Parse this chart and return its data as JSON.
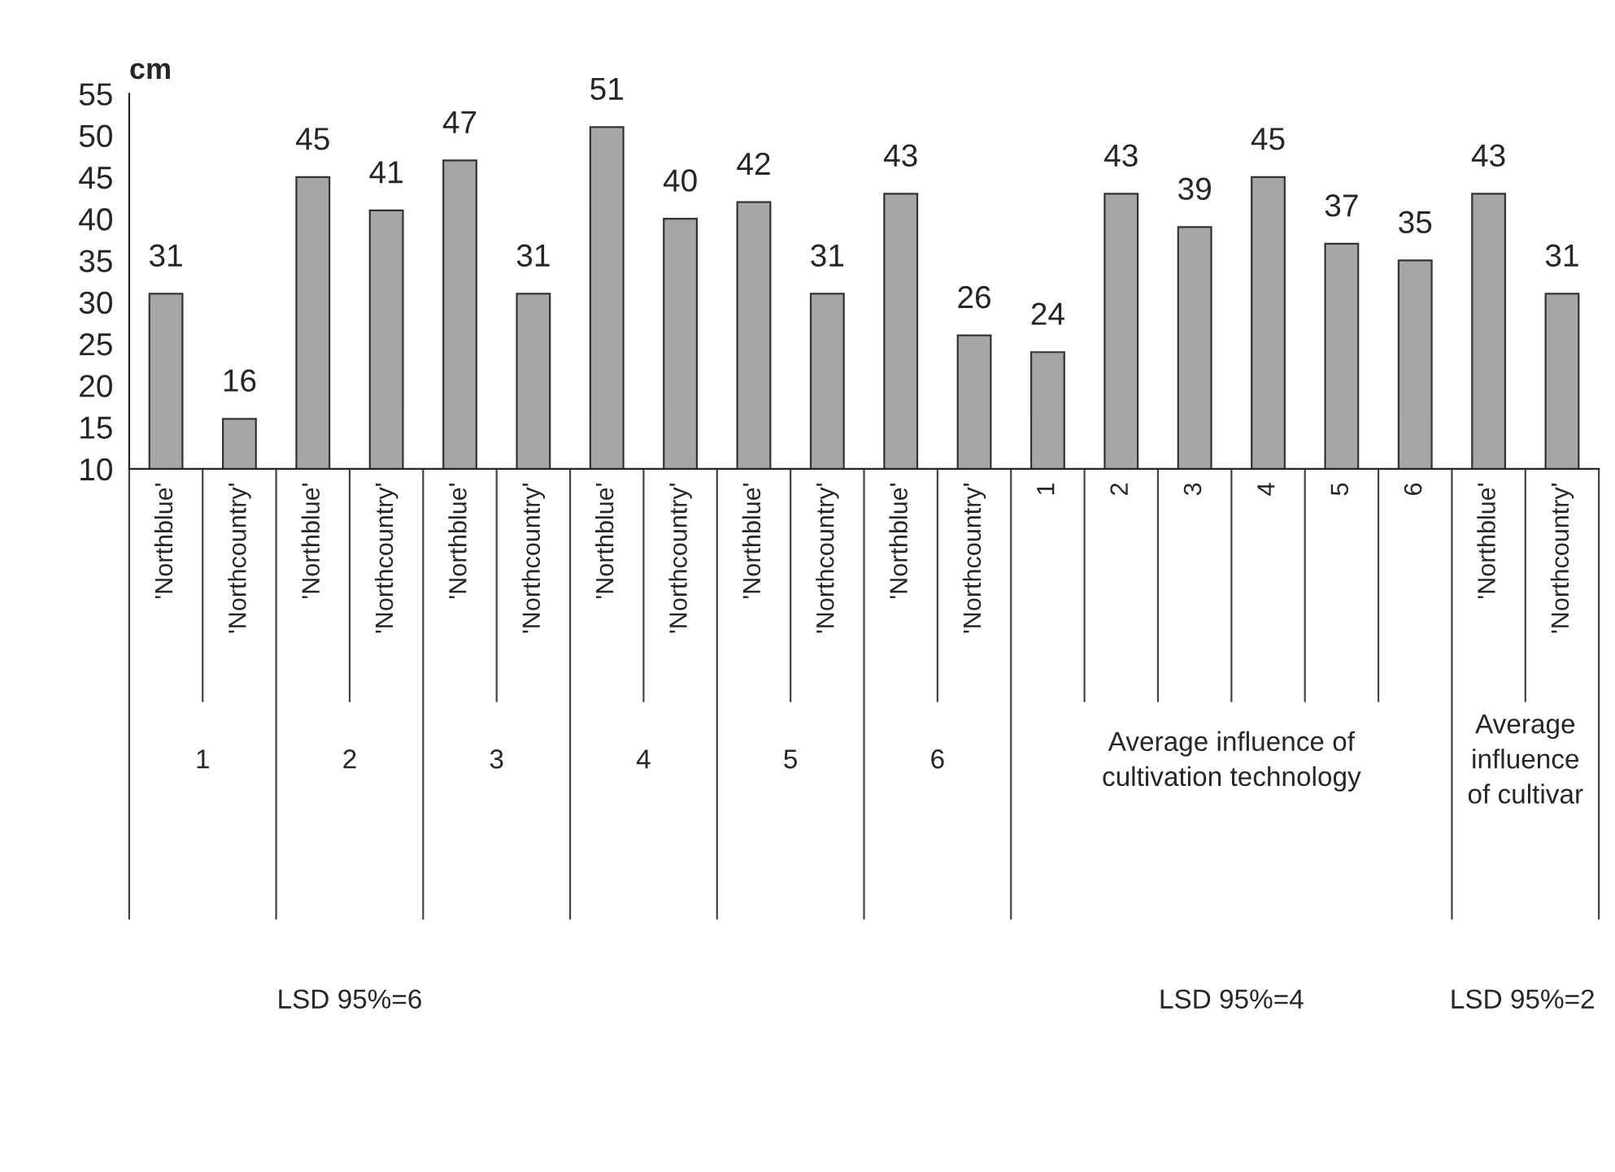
{
  "chart_data": {
    "type": "bar",
    "ylabel": "cm",
    "categories": [
      "'Northblue'",
      "'Northcountry'",
      "'Northblue'",
      "'Northcountry'",
      "'Northblue'",
      "'Northcountry'",
      "'Northblue'",
      "'Northcountry'",
      "'Northblue'",
      "'Northcountry'",
      "'Northblue'",
      "'Northcountry'",
      "1",
      "2",
      "3",
      "4",
      "5",
      "6",
      "'Northblue'",
      "'Northcountry'"
    ],
    "values": [
      31,
      16,
      45,
      41,
      47,
      31,
      51,
      40,
      42,
      31,
      43,
      26,
      24,
      43,
      39,
      45,
      37,
      35,
      43,
      31
    ],
    "color": "#a6a6a6",
    "data_labels": true,
    "grid": false,
    "ylim": [
      10,
      55
    ],
    "yticks": [
      10,
      15,
      20,
      25,
      30,
      35,
      40,
      45,
      50,
      55
    ],
    "annotations": [
      "1",
      "2",
      "3",
      "4",
      "5",
      "6",
      "Average influence of\ncultivation technology",
      "Average\ninfluence\nof cultivar",
      "LSD 95%=6",
      "LSD 95%=4",
      "LSD 95%=2"
    ]
  }
}
